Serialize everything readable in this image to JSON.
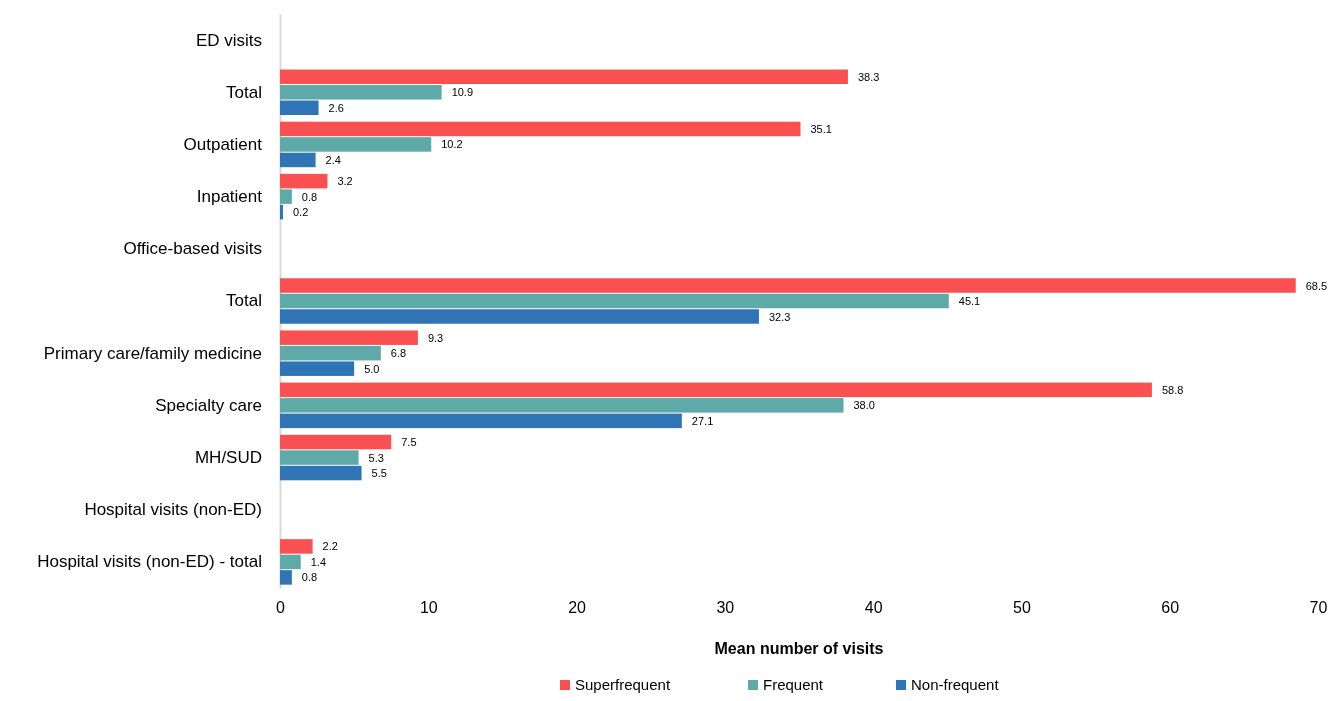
{
  "chart_data": {
    "type": "bar",
    "orientation": "horizontal",
    "xlabel": "Mean number of visits",
    "categories": [
      "ED visits",
      "Total",
      "Outpatient",
      "Inpatient",
      "Office-based visits",
      "Total",
      "Primary care/family medicine",
      "Specialty care",
      "MH/SUD",
      "Hospital visits (non-ED)",
      "Hospital visits (non-ED) - total"
    ],
    "series": [
      {
        "name": "Superfrequent",
        "color": "#f95151",
        "values": [
          null,
          38.3,
          35.1,
          3.2,
          null,
          68.5,
          9.3,
          58.8,
          7.5,
          null,
          2.2
        ],
        "value_labels": [
          null,
          "38.3",
          "35.1",
          "3.2",
          null,
          "68.5",
          "9.3",
          "58.8",
          "7.5",
          null,
          "2.2"
        ]
      },
      {
        "name": "Frequent",
        "color": "#5eaaa8",
        "values": [
          null,
          10.9,
          10.2,
          0.8,
          null,
          45.1,
          6.8,
          38.0,
          5.3,
          null,
          1.4
        ],
        "value_labels": [
          null,
          "10.9",
          "10.2",
          "0.8",
          null,
          "45.1",
          "6.8",
          "38.0",
          "5.3",
          null,
          "1.4"
        ]
      },
      {
        "name": "Non-frequent",
        "color": "#2f75b5",
        "values": [
          null,
          2.6,
          2.4,
          0.2,
          null,
          32.3,
          5.0,
          27.1,
          5.5,
          null,
          0.8
        ],
        "value_labels": [
          null,
          "2.6",
          "2.4",
          "0.2",
          null,
          "32.3",
          "5.0",
          "27.1",
          "5.5",
          null,
          "0.8"
        ]
      }
    ],
    "xlim": [
      0,
      70
    ],
    "xticks": [
      0,
      10,
      20,
      30,
      40,
      50,
      60,
      70
    ],
    "grid": false,
    "legend": "bottom"
  }
}
